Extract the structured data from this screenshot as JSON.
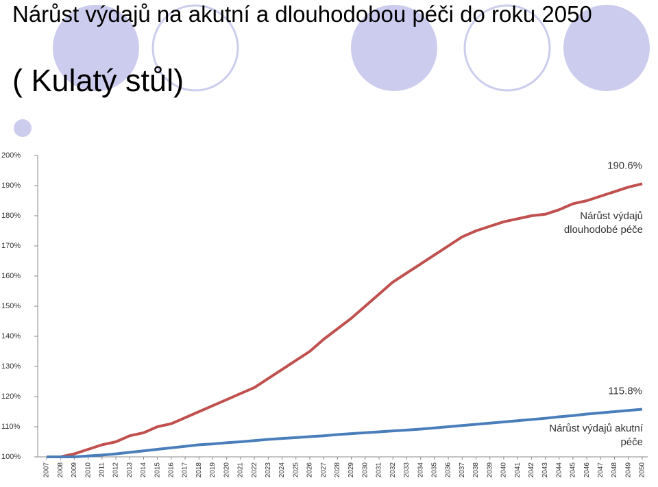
{
  "title": "Nárůst výdajů na akutní a dlouhodobou péči do roku 2050",
  "subtitle": "( Kulatý stůl)",
  "chart_data": {
    "type": "line",
    "categories": [
      "2007",
      "2008",
      "2009",
      "2010",
      "2011",
      "2012",
      "2013",
      "2014",
      "2015",
      "2016",
      "2017",
      "2018",
      "2019",
      "2020",
      "2021",
      "2022",
      "2023",
      "2024",
      "2025",
      "2026",
      "2027",
      "2028",
      "2029",
      "2030",
      "2031",
      "2032",
      "2033",
      "2034",
      "2035",
      "2036",
      "2037",
      "2038",
      "2039",
      "2040",
      "2041",
      "2042",
      "2043",
      "2044",
      "2045",
      "2046",
      "2047",
      "2048",
      "2049",
      "2050"
    ],
    "series": [
      {
        "name": "Nárůst výdajů dlouhodobé péče",
        "color": "#c0504d",
        "values": [
          100,
          100,
          101,
          102.5,
          104,
          105,
          107,
          108,
          110,
          111,
          113,
          115,
          117,
          119,
          121,
          123,
          126,
          129,
          132,
          135,
          139,
          142.5,
          146,
          150,
          154,
          158,
          161,
          164,
          167,
          170,
          173,
          175,
          176.5,
          178,
          179,
          180,
          180.5,
          182,
          184,
          185,
          186.5,
          188,
          189.5,
          190.6
        ],
        "value_labels": [
          null,
          null,
          null,
          null,
          null,
          null,
          null,
          null,
          null,
          null,
          null,
          null,
          null,
          null,
          null,
          null,
          null,
          null,
          null,
          null,
          null,
          null,
          null,
          null,
          null,
          null,
          null,
          null,
          null,
          null,
          null,
          null,
          null,
          null,
          null,
          null,
          null,
          null,
          null,
          null,
          null,
          null,
          null,
          "190.6%"
        ]
      },
      {
        "name": "Nárůst výdajů akutní péče",
        "color": "#4a7ebb",
        "values": [
          100,
          100,
          100,
          100.3,
          100.6,
          101,
          101.5,
          102,
          102.5,
          103,
          103.5,
          104,
          104.3,
          104.7,
          105,
          105.4,
          105.8,
          106.1,
          106.4,
          106.7,
          107,
          107.4,
          107.7,
          108,
          108.3,
          108.6,
          108.9,
          109.2,
          109.6,
          110,
          110.4,
          110.8,
          111.2,
          111.6,
          112,
          112.4,
          112.8,
          113.3,
          113.7,
          114.2,
          114.6,
          115,
          115.4,
          115.8
        ],
        "value_labels": [
          null,
          null,
          null,
          null,
          null,
          null,
          null,
          null,
          null,
          null,
          null,
          null,
          null,
          null,
          null,
          null,
          null,
          null,
          null,
          null,
          null,
          null,
          null,
          null,
          null,
          null,
          null,
          null,
          null,
          null,
          null,
          null,
          null,
          null,
          null,
          null,
          null,
          null,
          null,
          null,
          null,
          null,
          null,
          "115.8%"
        ]
      }
    ],
    "ylim": [
      100,
      200
    ],
    "yticks": [
      {
        "value": 100,
        "label": "100%"
      },
      {
        "value": 110,
        "label": "110%"
      },
      {
        "value": 120,
        "label": "120%"
      },
      {
        "value": 130,
        "label": "130%"
      },
      {
        "value": 140,
        "label": "140%"
      },
      {
        "value": 150,
        "label": "150%"
      },
      {
        "value": 160,
        "label": "160%"
      },
      {
        "value": 170,
        "label": "170%"
      },
      {
        "value": 180,
        "label": "180%"
      },
      {
        "value": 190,
        "label": "190%"
      },
      {
        "value": 200,
        "label": "200%"
      }
    ],
    "grid": false
  }
}
